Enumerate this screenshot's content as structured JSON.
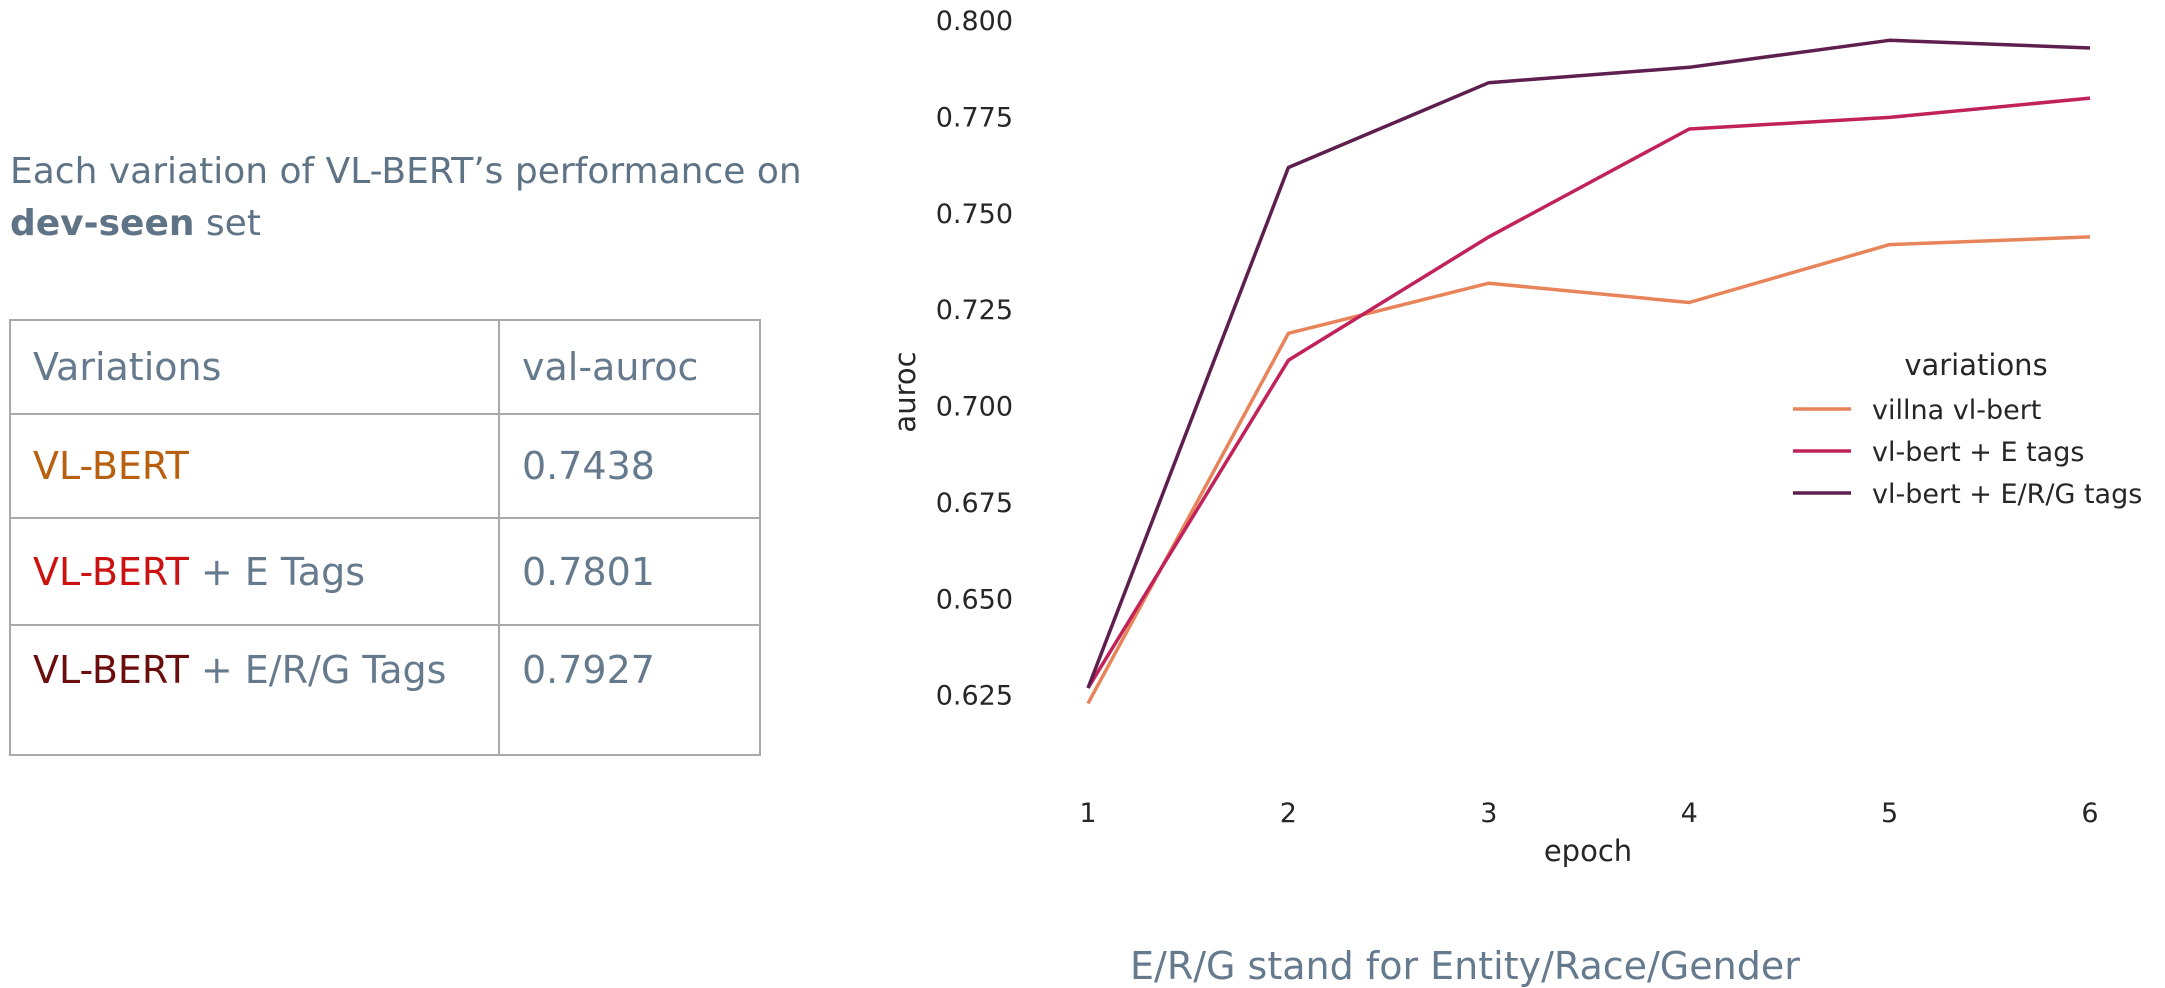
{
  "caption": {
    "line1": "Each variation of VL-BERT’s performance on",
    "bold": "dev-seen",
    "rest": " set"
  },
  "table": {
    "headers": [
      "Variations",
      "val-auroc"
    ],
    "rows": [
      {
        "model": "VL-BERT",
        "suffix": "",
        "model_color": "#b8600f",
        "value": "0.7438"
      },
      {
        "model": "VL-BERT",
        "suffix": " + E Tags",
        "model_color": "#cc1111",
        "value": "0.7801"
      },
      {
        "model": "VL-BERT",
        "suffix": " + E/R/G Tags",
        "model_color": "#6b0d0d",
        "value": "0.7927"
      }
    ]
  },
  "footer": "E/R/G stand for Entity/Race/Gender",
  "chart_data": {
    "type": "line",
    "x": [
      1,
      2,
      3,
      4,
      5,
      6
    ],
    "xlabel": "epoch",
    "ylabel": "auroc",
    "ylim": [
      0.613,
      0.8
    ],
    "xlim": [
      1,
      6
    ],
    "yticks": [
      "0.625",
      "0.650",
      "0.675",
      "0.700",
      "0.725",
      "0.750",
      "0.775",
      "0.800"
    ],
    "xticks": [
      "1",
      "2",
      "3",
      "4",
      "5",
      "6"
    ],
    "grid": false,
    "legend": {
      "title": "variations",
      "position": "right"
    },
    "series": [
      {
        "name": "villna vl-bert",
        "color": "#e8845a",
        "values": [
          0.623,
          0.719,
          0.732,
          0.727,
          0.742,
          0.744
        ]
      },
      {
        "name": "vl-bert + E tags",
        "color": "#c2225a",
        "values": [
          0.627,
          0.712,
          0.744,
          0.772,
          0.775,
          0.78
        ]
      },
      {
        "name": "vl-bert + E/R/G tags",
        "color": "#5e1f4e",
        "values": [
          0.627,
          0.762,
          0.784,
          0.788,
          0.795,
          0.793
        ]
      }
    ]
  }
}
